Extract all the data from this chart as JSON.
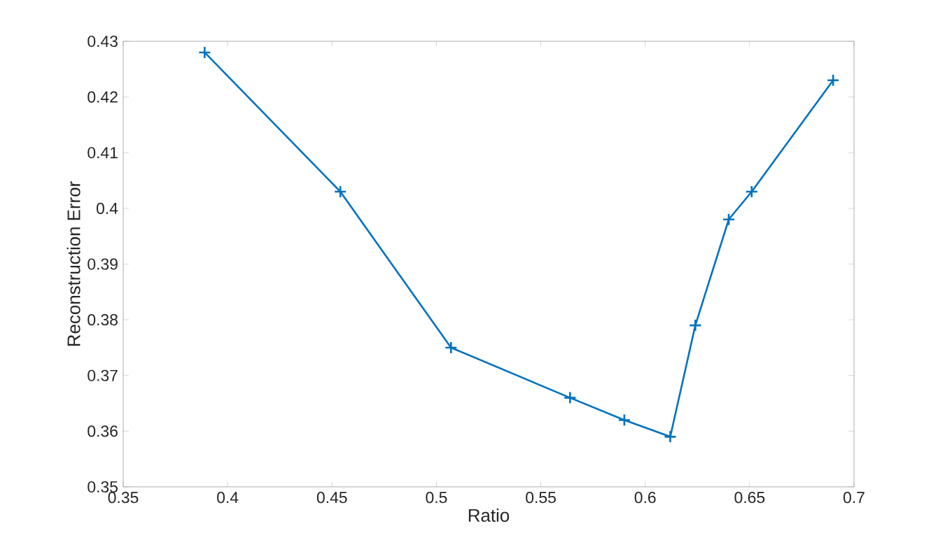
{
  "chart_data": {
    "type": "line",
    "xlabel": "Ratio",
    "ylabel": "Reconstruction Error",
    "x": [
      0.389,
      0.454,
      0.507,
      0.564,
      0.59,
      0.612,
      0.624,
      0.64,
      0.651,
      0.69
    ],
    "series": [
      {
        "color": "#0072bd",
        "values": [
          0.428,
          0.403,
          0.375,
          0.366,
          0.362,
          0.359,
          0.379,
          0.398,
          0.403,
          0.423
        ]
      }
    ],
    "xlim": [
      0.35,
      0.7
    ],
    "ylim": [
      0.35,
      0.43
    ],
    "xticks": [
      0.35,
      0.4,
      0.45,
      0.5,
      0.55,
      0.6,
      0.65,
      0.7
    ],
    "yticks": [
      0.35,
      0.36,
      0.37,
      0.38,
      0.39,
      0.4,
      0.41,
      0.42,
      0.43
    ],
    "marker": "cross",
    "line_style": "solid"
  }
}
